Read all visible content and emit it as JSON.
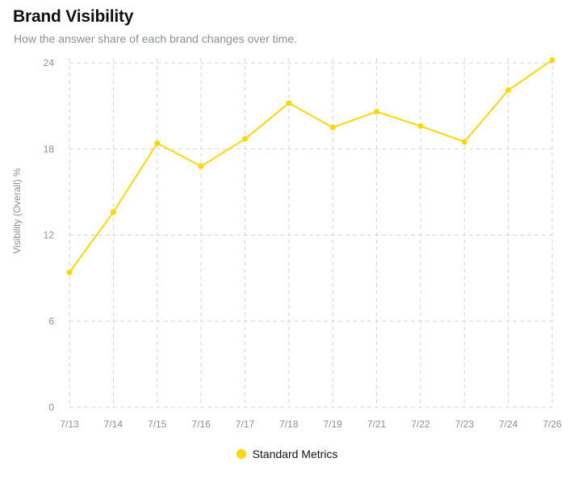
{
  "header": {
    "title": "Brand Visibility",
    "subtitle": "How the answer share of each brand changes over time."
  },
  "colors": {
    "series": "#FFD60A",
    "grid": "#d6d6d6",
    "tick_text": "#8a8f98"
  },
  "chart_data": {
    "type": "line",
    "title": "",
    "xlabel": "",
    "ylabel": "Visibility (Overall) %",
    "ylim": [
      0,
      24
    ],
    "yticks": [
      0,
      6,
      12,
      18,
      24
    ],
    "grid": true,
    "grid_style": "dashed",
    "legend_position": "bottom-center",
    "categories": [
      "7/13",
      "7/14",
      "7/15",
      "7/16",
      "7/17",
      "7/18",
      "7/19",
      "7/21",
      "7/22",
      "7/23",
      "7/24",
      "7/26"
    ],
    "series": [
      {
        "name": "Standard Metrics",
        "values": [
          9.4,
          13.6,
          18.4,
          16.8,
          18.7,
          21.2,
          19.5,
          20.6,
          19.6,
          18.5,
          22.1,
          24.2
        ]
      }
    ]
  }
}
